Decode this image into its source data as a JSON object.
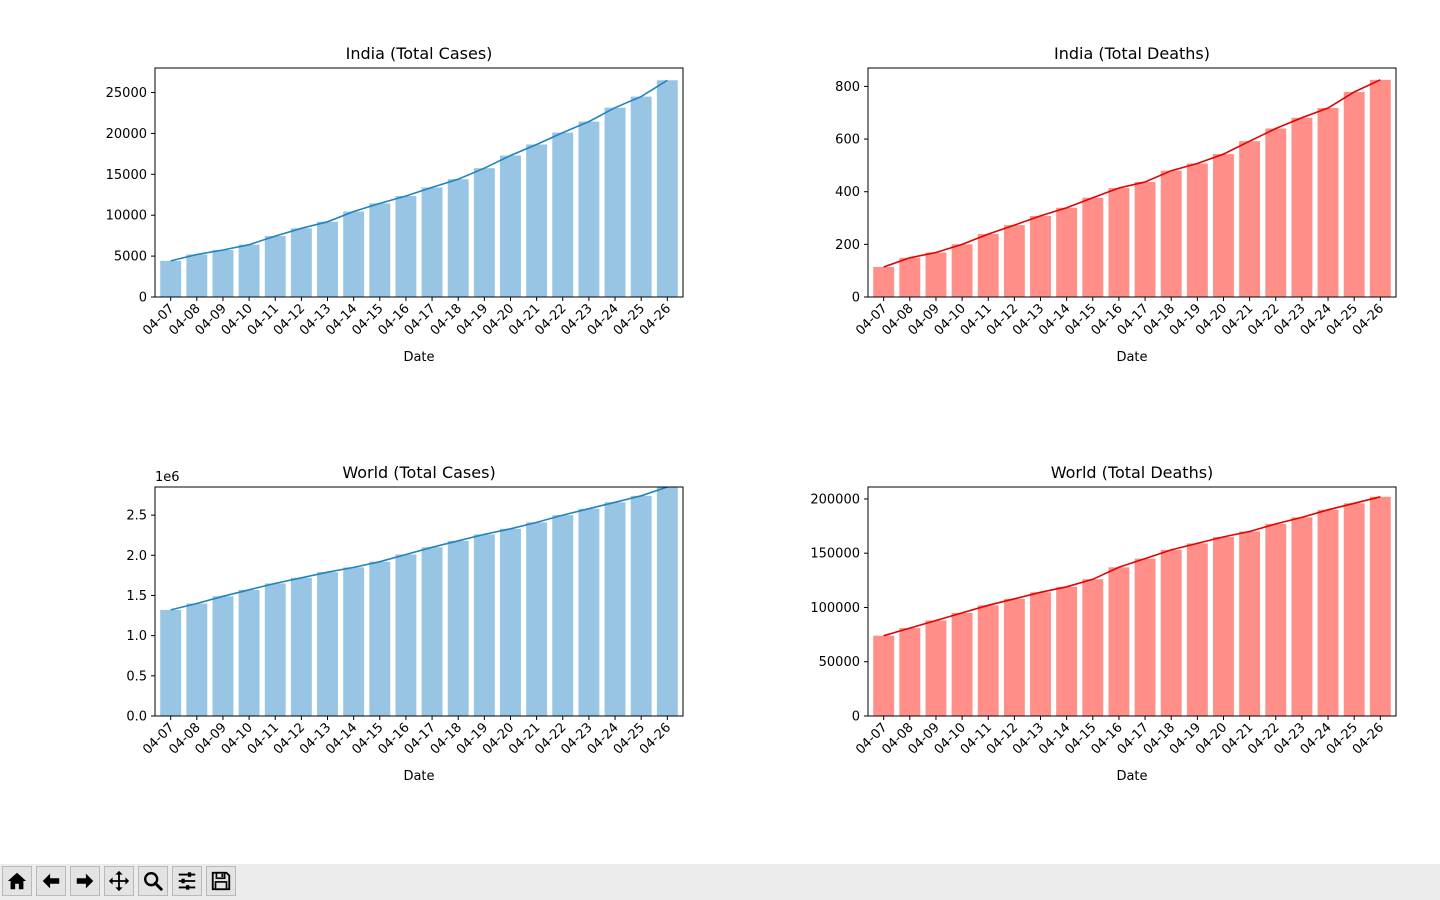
{
  "chart_data": [
    {
      "type": "bar",
      "title": "India (Total Cases)",
      "xlabel": "Date",
      "ylabel": "",
      "ylim": [
        0,
        28000
      ],
      "yticks": [
        0,
        5000,
        10000,
        15000,
        20000,
        25000
      ],
      "ytick_labels": [
        "0",
        "5000",
        "10000",
        "15000",
        "20000",
        "25000"
      ],
      "offset_label": "",
      "categories": [
        "04-07",
        "04-08",
        "04-09",
        "04-10",
        "04-11",
        "04-12",
        "04-13",
        "04-14",
        "04-15",
        "04-16",
        "04-17",
        "04-18",
        "04-19",
        "04-20",
        "04-21",
        "04-22",
        "04-23",
        "04-24",
        "04-25",
        "04-26"
      ],
      "values": [
        4420,
        5200,
        5750,
        6400,
        7450,
        8400,
        9200,
        10450,
        11450,
        12350,
        13400,
        14400,
        15750,
        17300,
        18650,
        20100,
        21450,
        23150,
        24500,
        26500
      ],
      "bar_color": "#97c5e3",
      "line_color": "#1f84bf"
    },
    {
      "type": "bar",
      "title": "India (Total Deaths)",
      "xlabel": "Date",
      "ylabel": "",
      "ylim": [
        0,
        870
      ],
      "yticks": [
        0,
        200,
        400,
        600,
        800
      ],
      "ytick_labels": [
        "0",
        "200",
        "400",
        "600",
        "800"
      ],
      "offset_label": "",
      "categories": [
        "04-07",
        "04-08",
        "04-09",
        "04-10",
        "04-11",
        "04-12",
        "04-13",
        "04-14",
        "04-15",
        "04-16",
        "04-17",
        "04-18",
        "04-19",
        "04-20",
        "04-21",
        "04-22",
        "04-23",
        "04-24",
        "04-25",
        "04-26"
      ],
      "values": [
        114,
        149,
        169,
        200,
        239,
        273,
        308,
        339,
        377,
        414,
        437,
        480,
        507,
        543,
        592,
        640,
        681,
        718,
        779,
        825
      ],
      "bar_color": "#ff8f88",
      "line_color": "#e50000"
    },
    {
      "type": "bar",
      "title": "World (Total Cases)",
      "xlabel": "Date",
      "ylabel": "",
      "ylim": [
        0,
        2.85
      ],
      "yticks": [
        0,
        0.5,
        1.0,
        1.5,
        2.0,
        2.5
      ],
      "ytick_labels": [
        "0.0",
        "0.5",
        "1.0",
        "1.5",
        "2.0",
        "2.5"
      ],
      "offset_label": "1e6",
      "categories": [
        "04-07",
        "04-08",
        "04-09",
        "04-10",
        "04-11",
        "04-12",
        "04-13",
        "04-14",
        "04-15",
        "04-16",
        "04-17",
        "04-18",
        "04-19",
        "04-20",
        "04-21",
        "04-22",
        "04-23",
        "04-24",
        "04-25",
        "04-26"
      ],
      "values": [
        1.32,
        1.4,
        1.49,
        1.57,
        1.65,
        1.72,
        1.79,
        1.85,
        1.92,
        2.01,
        2.1,
        2.18,
        2.26,
        2.33,
        2.41,
        2.5,
        2.58,
        2.66,
        2.74,
        2.85
      ],
      "bar_color": "#97c5e3",
      "line_color": "#1f84bf"
    },
    {
      "type": "bar",
      "title": "World (Total Deaths)",
      "xlabel": "Date",
      "ylabel": "",
      "ylim": [
        0,
        211000
      ],
      "yticks": [
        0,
        50000,
        100000,
        150000,
        200000
      ],
      "ytick_labels": [
        "0",
        "50000",
        "100000",
        "150000",
        "200000"
      ],
      "offset_label": "",
      "categories": [
        "04-07",
        "04-08",
        "04-09",
        "04-10",
        "04-11",
        "04-12",
        "04-13",
        "04-14",
        "04-15",
        "04-16",
        "04-17",
        "04-18",
        "04-19",
        "04-20",
        "04-21",
        "04-22",
        "04-23",
        "04-24",
        "04-25",
        "04-26"
      ],
      "values": [
        74000,
        81000,
        88000,
        95000,
        102000,
        108000,
        114000,
        119000,
        126000,
        137000,
        145000,
        153000,
        159000,
        165000,
        170000,
        177000,
        183000,
        190000,
        196000,
        202000
      ],
      "bar_color": "#ff8f88",
      "line_color": "#e50000"
    }
  ],
  "toolbar": {
    "buttons": [
      {
        "name": "home-button",
        "icon": "home-icon"
      },
      {
        "name": "back-button",
        "icon": "arrow-left-icon"
      },
      {
        "name": "forward-button",
        "icon": "arrow-right-icon"
      },
      {
        "name": "pan-button",
        "icon": "move-icon"
      },
      {
        "name": "zoom-button",
        "icon": "magnifier-icon"
      },
      {
        "name": "configure-subplots-button",
        "icon": "sliders-icon"
      },
      {
        "name": "save-button",
        "icon": "floppy-disk-icon"
      }
    ]
  }
}
